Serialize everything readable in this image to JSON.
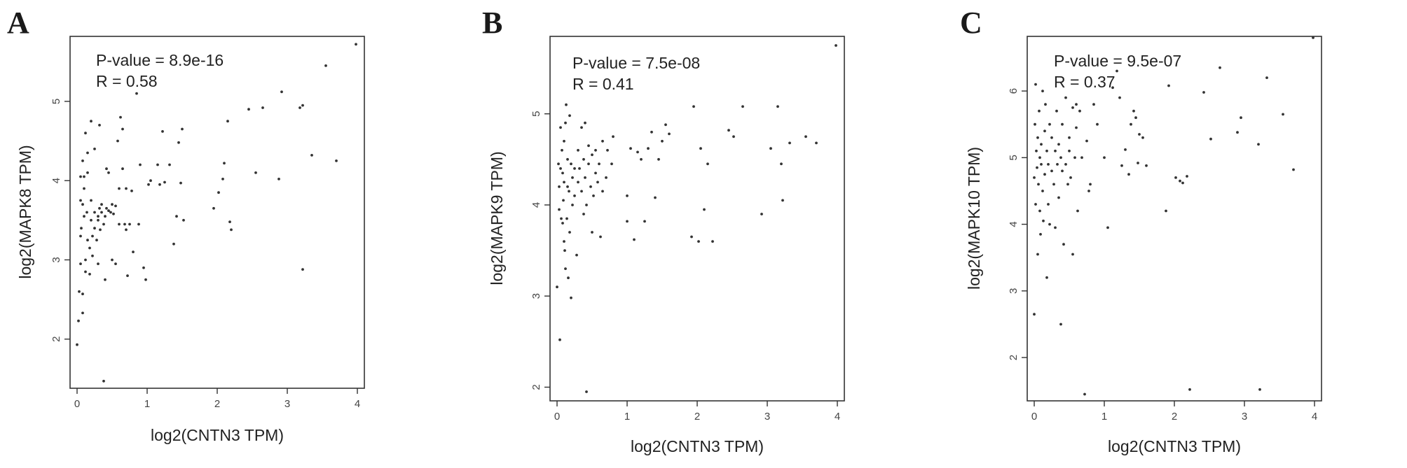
{
  "chart_data": [
    {
      "type": "scatter",
      "panel": "A",
      "xlabel": "log2(CNTN3 TPM)",
      "ylabel": "log2(MAPK8 TPM)",
      "stats": [
        "P-value = 8.9e-16",
        "R = 0.58"
      ],
      "xlim": [
        -0.1,
        4.1
      ],
      "ylim": [
        1.38,
        5.82
      ],
      "xticks": [
        0,
        1,
        2,
        3,
        4
      ],
      "yticks": [
        2,
        3,
        4,
        5
      ],
      "points": [
        [
          0.0,
          1.93
        ],
        [
          0.02,
          2.23
        ],
        [
          0.03,
          2.6
        ],
        [
          0.05,
          2.95
        ],
        [
          0.05,
          3.3
        ],
        [
          0.05,
          3.75
        ],
        [
          0.05,
          4.05
        ],
        [
          0.06,
          3.4
        ],
        [
          0.08,
          2.33
        ],
        [
          0.08,
          3.7
        ],
        [
          0.08,
          4.25
        ],
        [
          0.08,
          2.57
        ],
        [
          0.1,
          3.55
        ],
        [
          0.1,
          3.9
        ],
        [
          0.1,
          4.05
        ],
        [
          0.12,
          2.85
        ],
        [
          0.12,
          4.6
        ],
        [
          0.12,
          3.0
        ],
        [
          0.14,
          3.6
        ],
        [
          0.15,
          4.1
        ],
        [
          0.15,
          3.25
        ],
        [
          0.15,
          4.35
        ],
        [
          0.18,
          3.15
        ],
        [
          0.18,
          2.82
        ],
        [
          0.2,
          3.5
        ],
        [
          0.2,
          3.75
        ],
        [
          0.2,
          4.75
        ],
        [
          0.22,
          3.3
        ],
        [
          0.22,
          3.05
        ],
        [
          0.25,
          3.4
        ],
        [
          0.25,
          3.6
        ],
        [
          0.25,
          4.4
        ],
        [
          0.28,
          3.25
        ],
        [
          0.3,
          3.5
        ],
        [
          0.3,
          3.55
        ],
        [
          0.3,
          2.95
        ],
        [
          0.32,
          3.65
        ],
        [
          0.32,
          4.7
        ],
        [
          0.33,
          3.38
        ],
        [
          0.35,
          3.6
        ],
        [
          0.35,
          3.7
        ],
        [
          0.38,
          3.45
        ],
        [
          0.38,
          1.47
        ],
        [
          0.4,
          3.55
        ],
        [
          0.4,
          2.75
        ],
        [
          0.42,
          3.65
        ],
        [
          0.42,
          4.15
        ],
        [
          0.45,
          3.62
        ],
        [
          0.45,
          4.1
        ],
        [
          0.48,
          3.6
        ],
        [
          0.5,
          3.7
        ],
        [
          0.5,
          3.0
        ],
        [
          0.52,
          3.58
        ],
        [
          0.55,
          3.68
        ],
        [
          0.55,
          2.95
        ],
        [
          0.58,
          4.5
        ],
        [
          0.6,
          3.9
        ],
        [
          0.6,
          3.45
        ],
        [
          0.62,
          4.8
        ],
        [
          0.65,
          4.15
        ],
        [
          0.65,
          4.65
        ],
        [
          0.68,
          3.45
        ],
        [
          0.7,
          3.38
        ],
        [
          0.7,
          3.9
        ],
        [
          0.72,
          2.8
        ],
        [
          0.75,
          3.45
        ],
        [
          0.78,
          3.87
        ],
        [
          0.8,
          3.1
        ],
        [
          0.85,
          5.1
        ],
        [
          0.88,
          3.45
        ],
        [
          0.9,
          4.2
        ],
        [
          0.95,
          2.9
        ],
        [
          0.98,
          2.75
        ],
        [
          1.02,
          3.95
        ],
        [
          1.05,
          4.0
        ],
        [
          1.15,
          4.2
        ],
        [
          1.18,
          3.95
        ],
        [
          1.22,
          4.62
        ],
        [
          1.25,
          3.98
        ],
        [
          1.32,
          4.2
        ],
        [
          1.38,
          3.2
        ],
        [
          1.42,
          3.55
        ],
        [
          1.45,
          4.48
        ],
        [
          1.48,
          3.97
        ],
        [
          1.5,
          4.65
        ],
        [
          1.52,
          3.5
        ],
        [
          1.95,
          3.65
        ],
        [
          2.02,
          3.85
        ],
        [
          2.08,
          4.02
        ],
        [
          2.1,
          4.22
        ],
        [
          2.15,
          4.75
        ],
        [
          2.18,
          3.48
        ],
        [
          2.2,
          3.38
        ],
        [
          2.45,
          4.9
        ],
        [
          2.55,
          4.1
        ],
        [
          2.65,
          4.92
        ],
        [
          2.88,
          4.02
        ],
        [
          2.92,
          5.12
        ],
        [
          3.18,
          4.92
        ],
        [
          3.22,
          4.95
        ],
        [
          3.22,
          2.88
        ],
        [
          3.35,
          4.32
        ],
        [
          3.55,
          5.45
        ],
        [
          3.7,
          4.25
        ],
        [
          3.98,
          5.72
        ]
      ]
    },
    {
      "type": "scatter",
      "panel": "B",
      "xlabel": "log2(CNTN3 TPM)",
      "ylabel": "log2(MAPK9 TPM)",
      "stats": [
        "P-value = 7.5e-08",
        "R = 0.41"
      ],
      "xlim": [
        -0.1,
        4.1
      ],
      "ylim": [
        1.85,
        5.85
      ],
      "xticks": [
        0,
        1,
        2,
        3,
        4
      ],
      "yticks": [
        2,
        3,
        4,
        5
      ],
      "points": [
        [
          0.0,
          3.1
        ],
        [
          0.02,
          4.45
        ],
        [
          0.03,
          4.2
        ],
        [
          0.03,
          3.95
        ],
        [
          0.04,
          2.52
        ],
        [
          0.05,
          4.4
        ],
        [
          0.05,
          4.85
        ],
        [
          0.06,
          3.85
        ],
        [
          0.07,
          4.6
        ],
        [
          0.08,
          3.8
        ],
        [
          0.08,
          4.35
        ],
        [
          0.09,
          4.05
        ],
        [
          0.1,
          4.25
        ],
        [
          0.1,
          3.6
        ],
        [
          0.1,
          4.7
        ],
        [
          0.11,
          3.5
        ],
        [
          0.12,
          4.9
        ],
        [
          0.12,
          3.3
        ],
        [
          0.13,
          5.1
        ],
        [
          0.14,
          3.85
        ],
        [
          0.15,
          4.2
        ],
        [
          0.15,
          4.5
        ],
        [
          0.16,
          3.2
        ],
        [
          0.17,
          4.15
        ],
        [
          0.18,
          4.98
        ],
        [
          0.18,
          3.7
        ],
        [
          0.2,
          4.45
        ],
        [
          0.2,
          2.98
        ],
        [
          0.22,
          4.3
        ],
        [
          0.22,
          4.0
        ],
        [
          0.25,
          4.1
        ],
        [
          0.25,
          4.4
        ],
        [
          0.28,
          3.45
        ],
        [
          0.3,
          4.25
        ],
        [
          0.3,
          4.6
        ],
        [
          0.32,
          4.4
        ],
        [
          0.35,
          4.85
        ],
        [
          0.35,
          4.15
        ],
        [
          0.38,
          4.5
        ],
        [
          0.38,
          3.9
        ],
        [
          0.4,
          4.9
        ],
        [
          0.4,
          4.3
        ],
        [
          0.42,
          4.0
        ],
        [
          0.42,
          1.95
        ],
        [
          0.45,
          4.45
        ],
        [
          0.45,
          4.65
        ],
        [
          0.48,
          4.2
        ],
        [
          0.5,
          4.55
        ],
        [
          0.5,
          3.7
        ],
        [
          0.52,
          4.1
        ],
        [
          0.55,
          4.35
        ],
        [
          0.55,
          4.6
        ],
        [
          0.58,
          4.25
        ],
        [
          0.6,
          4.45
        ],
        [
          0.62,
          3.65
        ],
        [
          0.65,
          4.15
        ],
        [
          0.65,
          4.7
        ],
        [
          0.7,
          4.3
        ],
        [
          0.72,
          4.6
        ],
        [
          0.78,
          4.45
        ],
        [
          0.8,
          4.75
        ],
        [
          1.0,
          4.1
        ],
        [
          1.0,
          3.82
        ],
        [
          1.05,
          4.62
        ],
        [
          1.1,
          3.62
        ],
        [
          1.15,
          4.58
        ],
        [
          1.2,
          4.5
        ],
        [
          1.25,
          3.82
        ],
        [
          1.3,
          4.62
        ],
        [
          1.35,
          4.8
        ],
        [
          1.4,
          4.08
        ],
        [
          1.45,
          4.5
        ],
        [
          1.5,
          4.7
        ],
        [
          1.55,
          4.88
        ],
        [
          1.6,
          4.78
        ],
        [
          1.92,
          3.65
        ],
        [
          1.95,
          5.08
        ],
        [
          2.02,
          3.6
        ],
        [
          2.05,
          4.62
        ],
        [
          2.1,
          3.95
        ],
        [
          2.15,
          4.45
        ],
        [
          2.22,
          3.6
        ],
        [
          2.45,
          4.82
        ],
        [
          2.52,
          4.75
        ],
        [
          2.65,
          5.08
        ],
        [
          2.92,
          3.9
        ],
        [
          3.05,
          4.62
        ],
        [
          3.15,
          5.08
        ],
        [
          3.2,
          4.45
        ],
        [
          3.22,
          4.05
        ],
        [
          3.32,
          4.68
        ],
        [
          3.55,
          4.75
        ],
        [
          3.7,
          4.68
        ],
        [
          3.98,
          5.75
        ]
      ]
    },
    {
      "type": "scatter",
      "panel": "C",
      "xlabel": "log2(CNTN3 TPM)",
      "ylabel": "log2(MAPK10 TPM)",
      "stats": [
        "P-value = 9.5e-07",
        "R = 0.37"
      ],
      "xlim": [
        -0.1,
        4.1
      ],
      "ylim": [
        1.35,
        6.82
      ],
      "xticks": [
        0,
        1,
        2,
        3,
        4
      ],
      "yticks": [
        2,
        3,
        4,
        5,
        6
      ],
      "points": [
        [
          0.0,
          2.65
        ],
        [
          0.0,
          4.7
        ],
        [
          0.01,
          5.5
        ],
        [
          0.02,
          4.3
        ],
        [
          0.02,
          6.1
        ],
        [
          0.03,
          5.1
        ],
        [
          0.04,
          4.85
        ],
        [
          0.05,
          3.55
        ],
        [
          0.05,
          5.3
        ],
        [
          0.06,
          4.6
        ],
        [
          0.07,
          5.7
        ],
        [
          0.08,
          4.2
        ],
        [
          0.08,
          5.0
        ],
        [
          0.09,
          3.85
        ],
        [
          0.1,
          5.2
        ],
        [
          0.1,
          4.9
        ],
        [
          0.12,
          4.5
        ],
        [
          0.12,
          6.0
        ],
        [
          0.13,
          4.05
        ],
        [
          0.15,
          5.4
        ],
        [
          0.15,
          4.75
        ],
        [
          0.16,
          5.8
        ],
        [
          0.18,
          3.2
        ],
        [
          0.18,
          5.1
        ],
        [
          0.2,
          4.9
        ],
        [
          0.2,
          4.3
        ],
        [
          0.22,
          5.5
        ],
        [
          0.22,
          4.0
        ],
        [
          0.25,
          4.8
        ],
        [
          0.25,
          5.3
        ],
        [
          0.28,
          4.6
        ],
        [
          0.3,
          5.1
        ],
        [
          0.3,
          3.95
        ],
        [
          0.32,
          5.7
        ],
        [
          0.33,
          4.9
        ],
        [
          0.35,
          5.2
        ],
        [
          0.35,
          4.4
        ],
        [
          0.38,
          2.5
        ],
        [
          0.38,
          5.0
        ],
        [
          0.4,
          5.5
        ],
        [
          0.4,
          4.8
        ],
        [
          0.42,
          3.7
        ],
        [
          0.45,
          5.9
        ],
        [
          0.45,
          4.9
        ],
        [
          0.48,
          4.6
        ],
        [
          0.5,
          5.3
        ],
        [
          0.5,
          5.1
        ],
        [
          0.52,
          4.7
        ],
        [
          0.55,
          5.75
        ],
        [
          0.55,
          3.55
        ],
        [
          0.58,
          5.0
        ],
        [
          0.6,
          5.8
        ],
        [
          0.6,
          5.45
        ],
        [
          0.62,
          4.2
        ],
        [
          0.65,
          5.7
        ],
        [
          0.68,
          5.0
        ],
        [
          0.72,
          1.45
        ],
        [
          0.75,
          5.25
        ],
        [
          0.78,
          4.5
        ],
        [
          0.8,
          4.6
        ],
        [
          0.85,
          5.8
        ],
        [
          0.9,
          5.5
        ],
        [
          1.0,
          5.0
        ],
        [
          1.05,
          3.95
        ],
        [
          1.12,
          6.05
        ],
        [
          1.18,
          6.3
        ],
        [
          1.22,
          5.9
        ],
        [
          1.25,
          4.88
        ],
        [
          1.3,
          5.12
        ],
        [
          1.35,
          4.75
        ],
        [
          1.38,
          5.5
        ],
        [
          1.42,
          5.7
        ],
        [
          1.45,
          5.6
        ],
        [
          1.48,
          4.92
        ],
        [
          1.5,
          5.35
        ],
        [
          1.55,
          5.3
        ],
        [
          1.6,
          4.88
        ],
        [
          1.88,
          4.2
        ],
        [
          1.92,
          6.08
        ],
        [
          2.02,
          4.7
        ],
        [
          2.08,
          4.65
        ],
        [
          2.12,
          4.62
        ],
        [
          2.18,
          4.72
        ],
        [
          2.22,
          1.52
        ],
        [
          2.42,
          5.98
        ],
        [
          2.52,
          5.28
        ],
        [
          2.65,
          6.35
        ],
        [
          2.9,
          5.38
        ],
        [
          2.95,
          5.6
        ],
        [
          3.2,
          5.2
        ],
        [
          3.22,
          1.52
        ],
        [
          3.32,
          6.2
        ],
        [
          3.55,
          5.65
        ],
        [
          3.7,
          4.82
        ],
        [
          3.98,
          6.8
        ]
      ]
    }
  ]
}
